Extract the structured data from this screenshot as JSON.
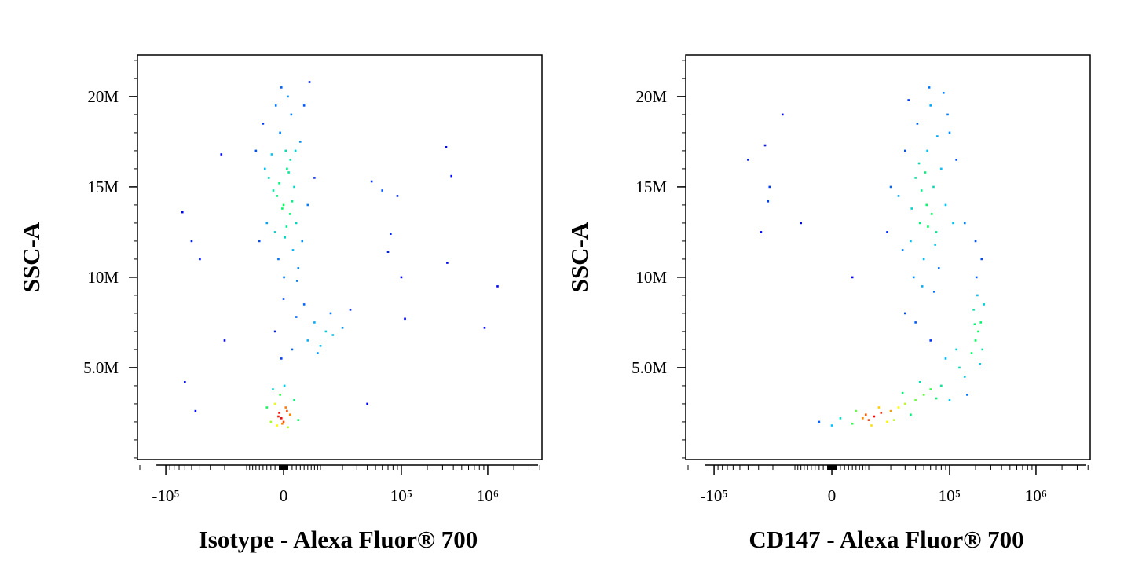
{
  "chart_data": [
    {
      "type": "scatter",
      "xlabel": "Isotype - Alexa Fluor® 700",
      "ylabel": "SSC-A",
      "xscale": "logicle",
      "xlim": [
        -213000,
        4240000
      ],
      "ylim": [
        -0.09,
        22.3
      ],
      "xticks": [
        {
          "value": -100000,
          "label": "-10⁵"
        },
        0,
        {
          "value": 100000,
          "label": "10⁵"
        },
        {
          "value": 1000000,
          "label": "10⁶"
        }
      ],
      "yticks": [
        {
          "value": 5,
          "label": "5.0M"
        },
        {
          "value": 10,
          "label": "10M"
        },
        {
          "value": 15,
          "label": "15M"
        },
        {
          "value": 20,
          "label": "20M"
        }
      ],
      "x": [
        0,
        1500,
        -1500,
        2500,
        -2000,
        800,
        3000,
        -3500,
        500,
        -800,
        1800,
        4000,
        -4000,
        2200,
        -1200,
        3500,
        -2800,
        1000,
        -500,
        5000,
        -5000,
        6000,
        -6000,
        300,
        1200,
        -300,
        2000,
        -1000,
        700,
        1600,
        -2400,
        2800,
        4500,
        -4500,
        8000,
        -7000,
        100,
        3200,
        -1800,
        6500,
        5000,
        8000,
        12000,
        15000,
        20000,
        10000,
        3000,
        -2000,
        6000,
        25000,
        0,
        14000,
        9000,
        2000,
        -500,
        -1000,
        -500,
        0,
        -2000,
        500,
        -1500,
        1500,
        -3000,
        2500,
        -2500,
        1000,
        -800,
        3500,
        -4000,
        200,
        -1200,
        800,
        -300,
        -64000,
        -50000,
        -40000,
        -60000,
        -45000,
        -22000,
        -20000,
        45000,
        60000,
        90000,
        75000,
        100000,
        110000,
        330000,
        380000,
        340000,
        920000,
        1300000,
        70000,
        40000
      ],
      "values": [
        14,
        13.5,
        14.5,
        15,
        12.5,
        16,
        13,
        15.5,
        17,
        18,
        19,
        17.5,
        13,
        11.5,
        11,
        10.5,
        16.8,
        20,
        20.5,
        19.5,
        18.5,
        14,
        12,
        12.2,
        15.8,
        13.8,
        14.2,
        15.2,
        12.8,
        16.5,
        14.8,
        17,
        12,
        16,
        15.5,
        17,
        10,
        9.8,
        19.5,
        20.8,
        8.5,
        7.5,
        7,
        6.8,
        7.2,
        6.2,
        7.8,
        7,
        6.5,
        8.2,
        8.8,
        8,
        5.8,
        6,
        5.5,
        2.5,
        2.2,
        2,
        3,
        2.8,
        1.8,
        2.4,
        2,
        3.2,
        3.8,
        1.7,
        3.5,
        2.1,
        2.8,
        4,
        2.3,
        2.6,
        1.9,
        13.6,
        12,
        11,
        4.2,
        2.6,
        16.8,
        6.5,
        15.3,
        14.8,
        14.5,
        12.4,
        10,
        7.7,
        17.2,
        15.6,
        10.8,
        7.2,
        9.5,
        11.4,
        3
      ]
    },
    {
      "type": "scatter",
      "xlabel": "CD147 - Alexa Fluor® 700",
      "ylabel": "SSC-A",
      "xscale": "logicle",
      "xlim": [
        -213000,
        4240000
      ],
      "ylim": [
        -0.09,
        22.3
      ],
      "xticks": [
        {
          "value": -100000,
          "label": "-10⁵"
        },
        0,
        {
          "value": 100000,
          "label": "10⁵"
        },
        {
          "value": 1000000,
          "label": "10⁶"
        }
      ],
      "yticks": [
        {
          "value": 5,
          "label": "5.0M"
        },
        {
          "value": 10,
          "label": "10M"
        },
        {
          "value": 15,
          "label": "15M"
        },
        {
          "value": 20,
          "label": "20M"
        }
      ],
      "x": [
        54000,
        45000,
        65000,
        40000,
        70000,
        55000,
        35000,
        80000,
        50000,
        60000,
        30000,
        90000,
        25000,
        75000,
        42000,
        100000,
        20000,
        58000,
        48000,
        110000,
        38000,
        68000,
        52000,
        62000,
        47000,
        72000,
        33000,
        85000,
        28000,
        120000,
        56000,
        44000,
        66000,
        18000,
        95000,
        36000,
        0,
        -3000,
        5000,
        8000,
        10000,
        12000,
        15000,
        9000,
        11000,
        20000,
        25000,
        30000,
        40000,
        50000,
        60000,
        70000,
        35000,
        18000,
        14000,
        6000,
        80000,
        45000,
        28000,
        100000,
        2000,
        22000,
        215000,
        200000,
        230000,
        190000,
        240000,
        210000,
        225000,
        180000,
        250000,
        205000,
        195000,
        235000,
        150000,
        130000,
        160000,
        90000,
        60000,
        40000,
        120000,
        30000,
        -23000,
        -28000,
        -40000,
        -22000,
        -15000,
        -8000,
        -25000,
        5000,
        200000,
        150000
      ],
      "values": [
        14,
        13,
        15,
        15.5,
        12.5,
        17,
        12,
        16,
        11,
        19.5,
        17,
        14,
        14.5,
        10.5,
        18.5,
        18,
        15,
        20.5,
        9.5,
        13,
        10,
        11.8,
        15.8,
        13.5,
        14.8,
        17.8,
        19.8,
        20.2,
        11.5,
        16.5,
        12.8,
        16.3,
        9.2,
        12.5,
        19,
        13.8,
        1.8,
        2,
        1.9,
        2.2,
        2.1,
        2.3,
        2.5,
        2.4,
        1.8,
        2.6,
        2.8,
        3,
        3.2,
        3.5,
        3.8,
        3.3,
        2.4,
        2,
        2.8,
        2.6,
        4,
        4.2,
        3.6,
        3.2,
        2.2,
        2.1,
        7,
        6.5,
        7.5,
        8.2,
        6,
        9,
        5.2,
        5.8,
        8.5,
        10,
        7.4,
        11,
        4.5,
        5,
        3.5,
        5.5,
        6.5,
        7.5,
        6,
        8,
        14.2,
        12.5,
        16.5,
        15,
        19,
        13,
        17.3,
        10,
        12,
        13
      ]
    }
  ]
}
